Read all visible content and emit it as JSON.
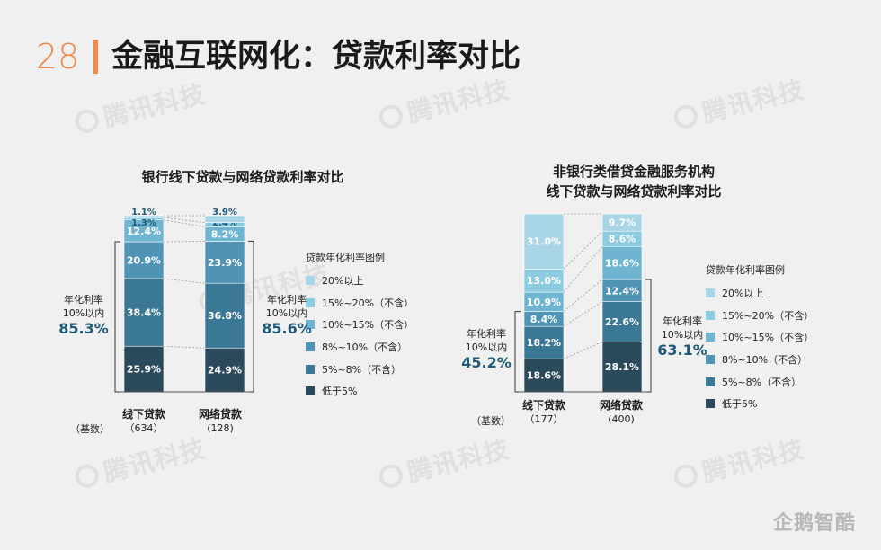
{
  "header": {
    "page_number": "28",
    "title": "金融互联网化：贷款利率对比"
  },
  "watermark": "腾讯科技",
  "brand": "企鹅智酷",
  "colors": {
    "20plus": "#a9d6e5",
    "15to20": "#8ccbe0",
    "10to15": "#6fb4d0",
    "8to10": "#4f93b5",
    "5to8": "#3a7896",
    "below5": "#2a4a5c"
  },
  "legend_series": [
    "20%以上",
    "15%~20%（不含）",
    "10%~15%（不含）",
    "8%~10%（不含）",
    "5%~8%（不含）",
    "低于5%"
  ],
  "chart_data": [
    {
      "type": "bar",
      "stacked": true,
      "title": "银行线下贷款与网络贷款利率对比",
      "legend_title": "贷款年化利率图例",
      "base_label": "（基数）",
      "categories": [
        "线下贷款",
        "网络贷款"
      ],
      "bases": [
        "（634）",
        "(128)"
      ],
      "series": [
        {
          "name": "20%以上",
          "values": [
            1.1,
            3.9
          ]
        },
        {
          "name": "15%~20%（不含）",
          "values": [
            1.3,
            2.4
          ]
        },
        {
          "name": "10%~15%（不含）",
          "values": [
            12.4,
            8.2
          ]
        },
        {
          "name": "8%~10%（不含）",
          "values": [
            20.9,
            23.9
          ]
        },
        {
          "name": "5%~8%（不含）",
          "values": [
            38.4,
            36.8
          ]
        },
        {
          "name": "低于5%",
          "values": [
            25.9,
            24.9
          ]
        }
      ],
      "value_labels": [
        [
          "1.1%",
          "1.3%",
          "12.4%",
          "20.9%",
          "38.4%",
          "25.9%"
        ],
        [
          "3.9%",
          "2.4%",
          "8.2%",
          "23.9%",
          "36.8%",
          "24.9%"
        ]
      ],
      "annotations": [
        {
          "label": "年化利率\n10%以内",
          "value": "85.3%"
        },
        {
          "label": "年化利率\n10%以内",
          "value": "85.6%"
        }
      ]
    },
    {
      "type": "bar",
      "stacked": true,
      "title": "非银行类借贷金融服务机构\n线下贷款与网络贷款利率对比",
      "legend_title": "贷款年化利率图例",
      "base_label": "（基数）",
      "categories": [
        "线下贷款",
        "网络贷款"
      ],
      "bases": [
        "（177）",
        "(400)"
      ],
      "series": [
        {
          "name": "20%以上",
          "values": [
            31.0,
            9.7
          ]
        },
        {
          "name": "15%~20%（不含）",
          "values": [
            13.0,
            8.6
          ]
        },
        {
          "name": "10%~15%（不含）",
          "values": [
            10.9,
            18.6
          ]
        },
        {
          "name": "8%~10%（不含）",
          "values": [
            8.4,
            12.4
          ]
        },
        {
          "name": "5%~8%（不含）",
          "values": [
            18.2,
            22.6
          ]
        },
        {
          "name": "低于5%",
          "values": [
            18.6,
            28.1
          ]
        }
      ],
      "value_labels": [
        [
          "31.0%",
          "13.0%",
          "10.9%",
          "8.4%",
          "18.2%",
          "18.6%"
        ],
        [
          "9.7%",
          "8.6%",
          "18.6%",
          "12.4%",
          "22.6%",
          "28.1%"
        ]
      ],
      "annotations": [
        {
          "label": "年化利率\n10%以内",
          "value": "45.2%"
        },
        {
          "label": "年化利率\n10%以内",
          "value": "63.1%"
        }
      ]
    }
  ]
}
